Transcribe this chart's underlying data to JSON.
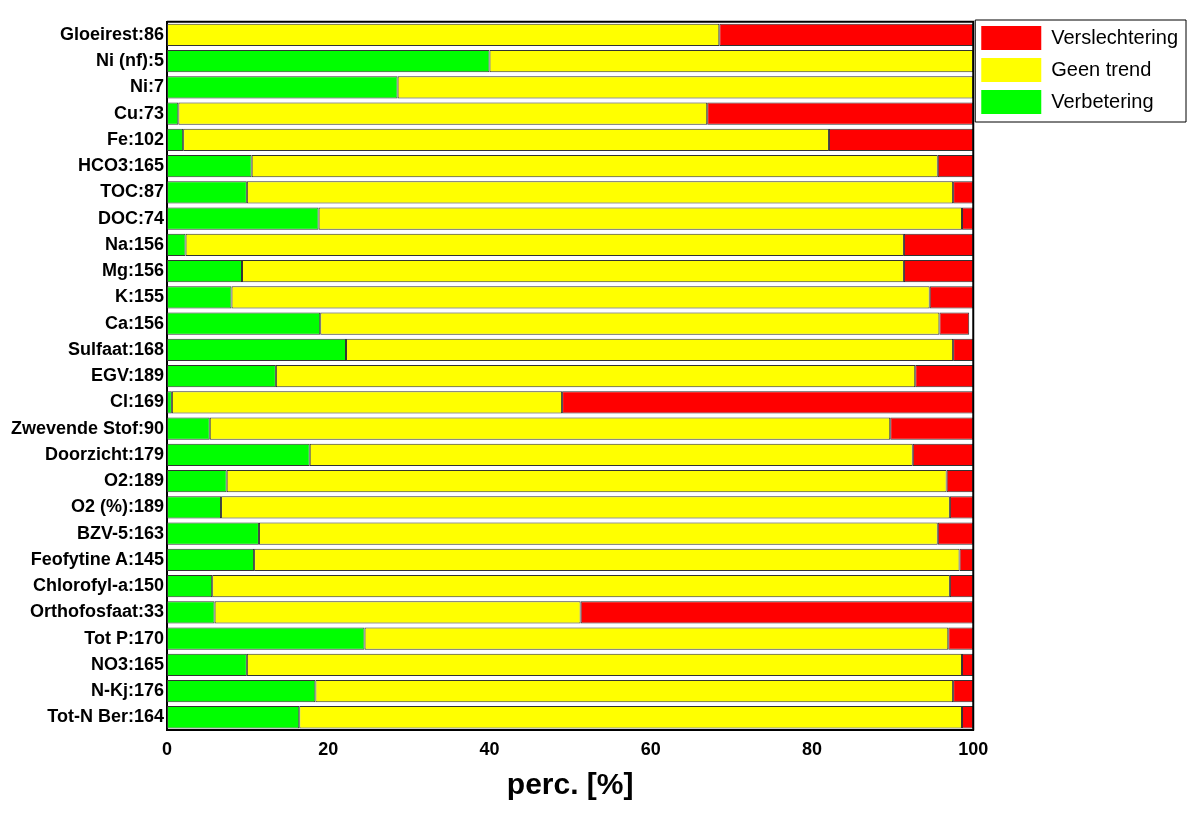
{
  "chart_data": {
    "type": "bar",
    "orientation": "horizontal",
    "stacked": true,
    "xlabel": "perc. [%]",
    "categories": [
      "Gloeirest:86",
      "Ni (nf):5",
      "Ni:7",
      "Cu:73",
      "Fe:102",
      "HCO3:165",
      "TOC:87",
      "DOC:74",
      "Na:156",
      "Mg:156",
      "K:155",
      "Ca:156",
      "Sulfaat:168",
      "EGV:189",
      "Cl:169",
      "Zwevende Stof:90",
      "Doorzicht:179",
      "O2:189",
      "O2 (%):189",
      "BZV-5:163",
      "Feofytine A:145",
      "Chlorofyl-a:150",
      "Orthofosfaat:33",
      "Tot P:170",
      "NO3:165",
      "N-Kj:176",
      "Tot-N Ber:164"
    ],
    "series": [
      {
        "name": "Verbetering",
        "color": "#00ff00",
        "values": [
          0,
          40,
          28.6,
          1.4,
          2.0,
          10.5,
          9.9,
          18.8,
          2.3,
          9.3,
          8.0,
          19.0,
          22.2,
          13.5,
          0.6,
          5.3,
          17.7,
          7.4,
          6.7,
          11.4,
          10.8,
          5.6,
          5.9,
          24.5,
          9.9,
          18.4,
          16.4
        ]
      },
      {
        "name": "Geen trend",
        "color": "#ffff00",
        "values": [
          68.5,
          60,
          71.4,
          65.6,
          80.1,
          85.1,
          87.6,
          79.8,
          89.1,
          82.1,
          86.6,
          76.8,
          75.3,
          79.3,
          48.4,
          84.4,
          74.8,
          89.3,
          90.4,
          84.2,
          87.5,
          91.5,
          45.4,
          72.4,
          88.7,
          79.1,
          82.2
        ]
      },
      {
        "name": "Verslechtering",
        "color": "#ff0000",
        "values": [
          31.5,
          0,
          0,
          33.0,
          17.9,
          4.4,
          2.5,
          1.4,
          8.6,
          8.6,
          5.4,
          3.7,
          2.5,
          7.2,
          51.0,
          10.3,
          7.5,
          3.3,
          2.9,
          4.4,
          1.7,
          2.9,
          48.7,
          3.1,
          1.4,
          2.5,
          1.4
        ]
      }
    ],
    "xlim": [
      0,
      100
    ],
    "xticks": [
      0,
      20,
      40,
      60,
      80,
      100
    ],
    "grid": false,
    "legend": "top right"
  }
}
